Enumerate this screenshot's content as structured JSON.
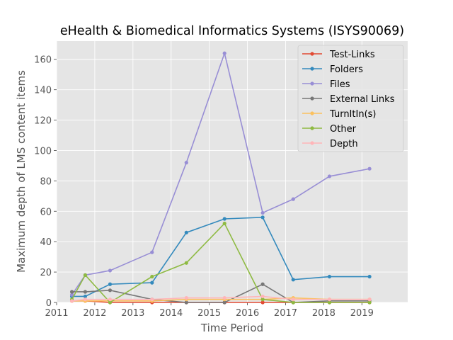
{
  "chart_data": {
    "type": "line",
    "title": "eHealth & Biomedical Informatics Systems (ISYS90069)",
    "xlabel": "Time Period",
    "ylabel": "Maximum depth of LMS content items",
    "xlim": [
      2011,
      2020.2
    ],
    "ylim": [
      0,
      172
    ],
    "xticks": [
      "2011",
      "2012",
      "2013",
      "2014",
      "2015",
      "2016",
      "2017",
      "2018",
      "2019"
    ],
    "yticks": [
      "0",
      "20",
      "40",
      "60",
      "80",
      "100",
      "120",
      "140",
      "160"
    ],
    "grid": true,
    "legend_position": "top-right",
    "x": [
      2011.4,
      2011.75,
      2012.4,
      2013.5,
      2014.4,
      2015.4,
      2016.4,
      2017.2,
      2018.15,
      2019.2
    ],
    "series": [
      {
        "name": "Test-Links",
        "color": "#e24a33",
        "values": [
          1,
          1,
          0,
          0,
          0,
          0,
          0,
          0,
          0,
          0
        ]
      },
      {
        "name": "Folders",
        "color": "#348abd",
        "values": [
          4,
          4,
          12,
          13,
          46,
          55,
          56,
          15,
          17,
          17
        ]
      },
      {
        "name": "Files",
        "color": "#988ed5",
        "values": [
          5,
          18,
          21,
          33,
          92,
          164,
          59,
          68,
          83,
          88
        ]
      },
      {
        "name": "External Links",
        "color": "#777777",
        "values": [
          7,
          7,
          8,
          2,
          0,
          0,
          12,
          0,
          1,
          1
        ]
      },
      {
        "name": "TurnItIn(s)",
        "color": "#fbc15e",
        "values": [
          1,
          1,
          1,
          1,
          2,
          2,
          2,
          3,
          2,
          2
        ]
      },
      {
        "name": "Other",
        "color": "#8eba42",
        "values": [
          2,
          18,
          0,
          17,
          26,
          52,
          2,
          0,
          0,
          0
        ]
      },
      {
        "name": "Depth",
        "color": "#ffb5b8",
        "values": [
          1,
          2,
          2,
          2,
          3,
          3,
          4,
          2,
          2,
          2
        ]
      }
    ]
  }
}
